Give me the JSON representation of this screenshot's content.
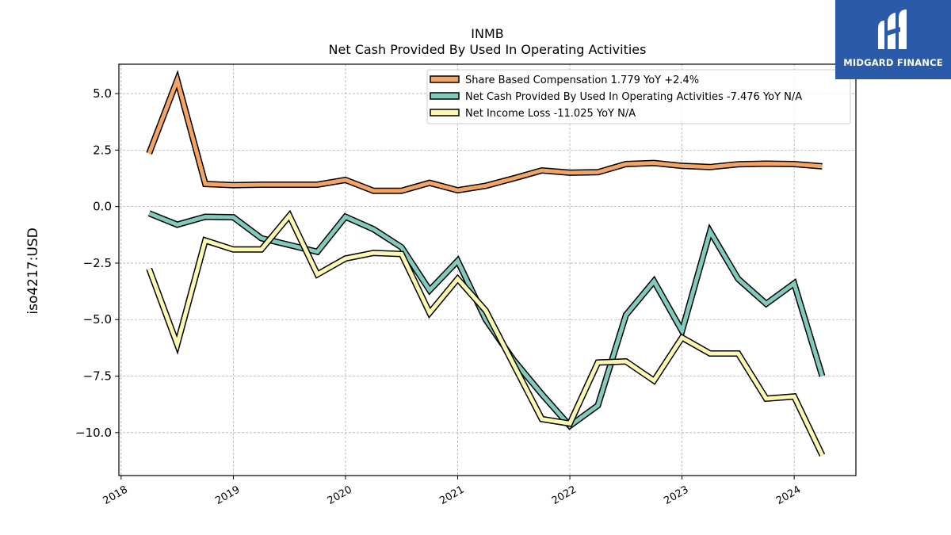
{
  "chart_data": {
    "type": "line",
    "title": "INMB",
    "subtitle": "Net Cash Provided By Used In Operating Activities",
    "ylabel": "iso4217:USD",
    "xlabel": "",
    "ylim": [
      -11.9,
      6.3
    ],
    "xlim": [
      2017.98,
      2024.55
    ],
    "xticks": [
      2018,
      2019,
      2020,
      2021,
      2022,
      2023,
      2024
    ],
    "yticks": [
      5.0,
      2.5,
      0.0,
      -2.5,
      -5.0,
      -7.5,
      -10.0
    ],
    "ytick_labels": [
      "5.0",
      "2.5",
      "0.0",
      "−2.5",
      "−5.0",
      "−7.5",
      "−10.0"
    ],
    "grid": true,
    "legend_position": "top-right",
    "x": [
      2018.25,
      2018.5,
      2018.75,
      2019.0,
      2019.25,
      2019.5,
      2019.75,
      2020.0,
      2020.25,
      2020.5,
      2020.75,
      2021.0,
      2021.25,
      2021.5,
      2021.75,
      2022.0,
      2022.25,
      2022.5,
      2022.75,
      2023.0,
      2023.25,
      2023.5,
      2023.75,
      2024.0,
      2024.25
    ],
    "series": [
      {
        "name": "Share Based Compensation",
        "legend_label": "Share Based Compensation  1.779 YoY +2.4%",
        "color": "#f4a563",
        "values": [
          2.35,
          5.6,
          1.0,
          0.95,
          0.97,
          0.97,
          0.97,
          1.18,
          0.7,
          0.7,
          1.05,
          0.72,
          0.92,
          1.25,
          1.6,
          1.5,
          1.52,
          1.88,
          1.93,
          1.8,
          1.75,
          1.87,
          1.9,
          1.88,
          1.78
        ]
      },
      {
        "name": "Net Cash Provided By Used In Operating Activities",
        "legend_label": "Net Cash Provided By Used In Operating Activities  -7.476 YoY N/A",
        "color": "#80cbbe",
        "values": [
          -0.3,
          -0.8,
          -0.45,
          -0.47,
          -1.4,
          -1.7,
          -2.0,
          -0.45,
          -1.0,
          -1.8,
          -3.7,
          -2.4,
          -5.0,
          -6.8,
          -8.3,
          -9.7,
          -8.8,
          -4.8,
          -3.3,
          -5.5,
          -1.1,
          -3.2,
          -4.3,
          -3.4,
          -7.5
        ]
      },
      {
        "name": "Net Income Loss",
        "legend_label": "Net Income Loss  -11.025 YoY N/A",
        "color": "#fdf8b0",
        "values": [
          -2.75,
          -6.1,
          -1.5,
          -1.9,
          -1.9,
          -0.4,
          -3.0,
          -2.3,
          -2.05,
          -2.1,
          -4.7,
          -3.2,
          -4.6,
          -7.0,
          -9.4,
          -9.6,
          -6.9,
          -6.85,
          -7.7,
          -5.8,
          -6.5,
          -6.5,
          -8.5,
          -8.4,
          -11.0
        ]
      }
    ]
  },
  "logo": {
    "text": "MIDGARD FINANCE",
    "background": "#2b5ba8",
    "icon": "midgard-mark-icon"
  }
}
